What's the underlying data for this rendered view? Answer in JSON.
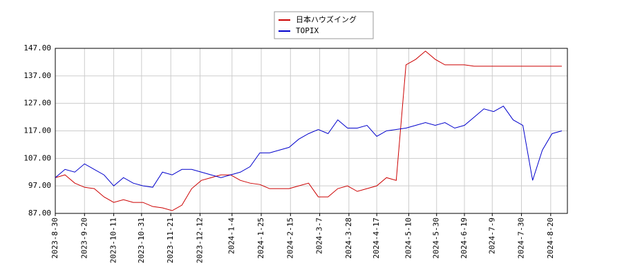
{
  "chart_data": {
    "type": "line",
    "x": [
      "2023-8-30",
      "2023-9-6",
      "2023-9-13",
      "2023-9-20",
      "2023-9-27",
      "2023-10-4",
      "2023-10-11",
      "2023-10-18",
      "2023-10-25",
      "2023-11-1",
      "2023-11-8",
      "2023-11-15",
      "2023-11-22",
      "2023-11-29",
      "2023-12-6",
      "2023-12-13",
      "2023-12-20",
      "2023-12-27",
      "2024-1-3",
      "2024-1-10",
      "2024-1-17",
      "2024-1-24",
      "2024-1-31",
      "2024-2-7",
      "2024-2-14",
      "2024-2-21",
      "2024-2-28",
      "2024-3-6",
      "2024-3-13",
      "2024-3-20",
      "2024-3-27",
      "2024-4-3",
      "2024-4-10",
      "2024-4-17",
      "2024-4-24",
      "2024-5-1",
      "2024-5-8",
      "2024-5-15",
      "2024-5-22",
      "2024-5-29",
      "2024-6-5",
      "2024-6-12",
      "2024-6-19",
      "2024-6-26",
      "2024-7-3",
      "2024-7-10",
      "2024-7-17",
      "2024-7-24",
      "2024-7-31",
      "2024-8-7",
      "2024-8-14",
      "2024-8-21",
      "2024-8-28"
    ],
    "series": [
      {
        "name": "日本ハウズイング",
        "color": "#cc0000",
        "values": [
          100,
          101,
          98,
          96.5,
          96,
          93,
          91,
          92,
          91,
          91,
          89.5,
          89,
          88,
          90,
          96,
          99,
          100,
          101,
          101,
          99,
          98,
          97.5,
          96,
          96,
          96,
          97,
          98,
          93,
          93,
          96,
          97,
          95,
          96,
          97,
          100,
          99,
          141,
          143,
          146,
          143,
          141,
          141,
          141,
          140.5,
          140.5,
          140.5,
          140.5,
          140.5,
          140.5,
          140.5,
          140.5,
          140.5,
          140.5
        ]
      },
      {
        "name": "TOPIX",
        "color": "#0000cc",
        "values": [
          100,
          103,
          102,
          105,
          103,
          101,
          97,
          100,
          98,
          97,
          96.5,
          102,
          101,
          103,
          103,
          102,
          101,
          100,
          101,
          102,
          104,
          109,
          109,
          110,
          111,
          114,
          116,
          117.5,
          116,
          121,
          118,
          118,
          119,
          115,
          117,
          117.5,
          118,
          119,
          120,
          119,
          120,
          118,
          119,
          122,
          125,
          124,
          126,
          121,
          119,
          99,
          110,
          116,
          117
        ]
      }
    ],
    "xlim": [
      "2023-8-30",
      "2024-9-1"
    ],
    "xticks": [
      "2023-8-30",
      "2023-9-20",
      "2023-10-11",
      "2023-10-31",
      "2023-11-21",
      "2023-12-12",
      "2024-1-4",
      "2024-1-25",
      "2024-2-15",
      "2024-3-7",
      "2024-3-28",
      "2024-4-17",
      "2024-5-10",
      "2024-5-30",
      "2024-6-19",
      "2024-7-9",
      "2024-7-30",
      "2024-8-20"
    ],
    "ylim": [
      87,
      147
    ],
    "yticks": [
      {
        "value": 87,
        "label": "87.00"
      },
      {
        "value": 97,
        "label": "97.00"
      },
      {
        "value": 107,
        "label": "107.00"
      },
      {
        "value": 117,
        "label": "117.00"
      },
      {
        "value": 127,
        "label": "127.00"
      },
      {
        "value": 137,
        "label": "137.00"
      },
      {
        "value": 147,
        "label": "147.00"
      }
    ],
    "grid": true
  }
}
